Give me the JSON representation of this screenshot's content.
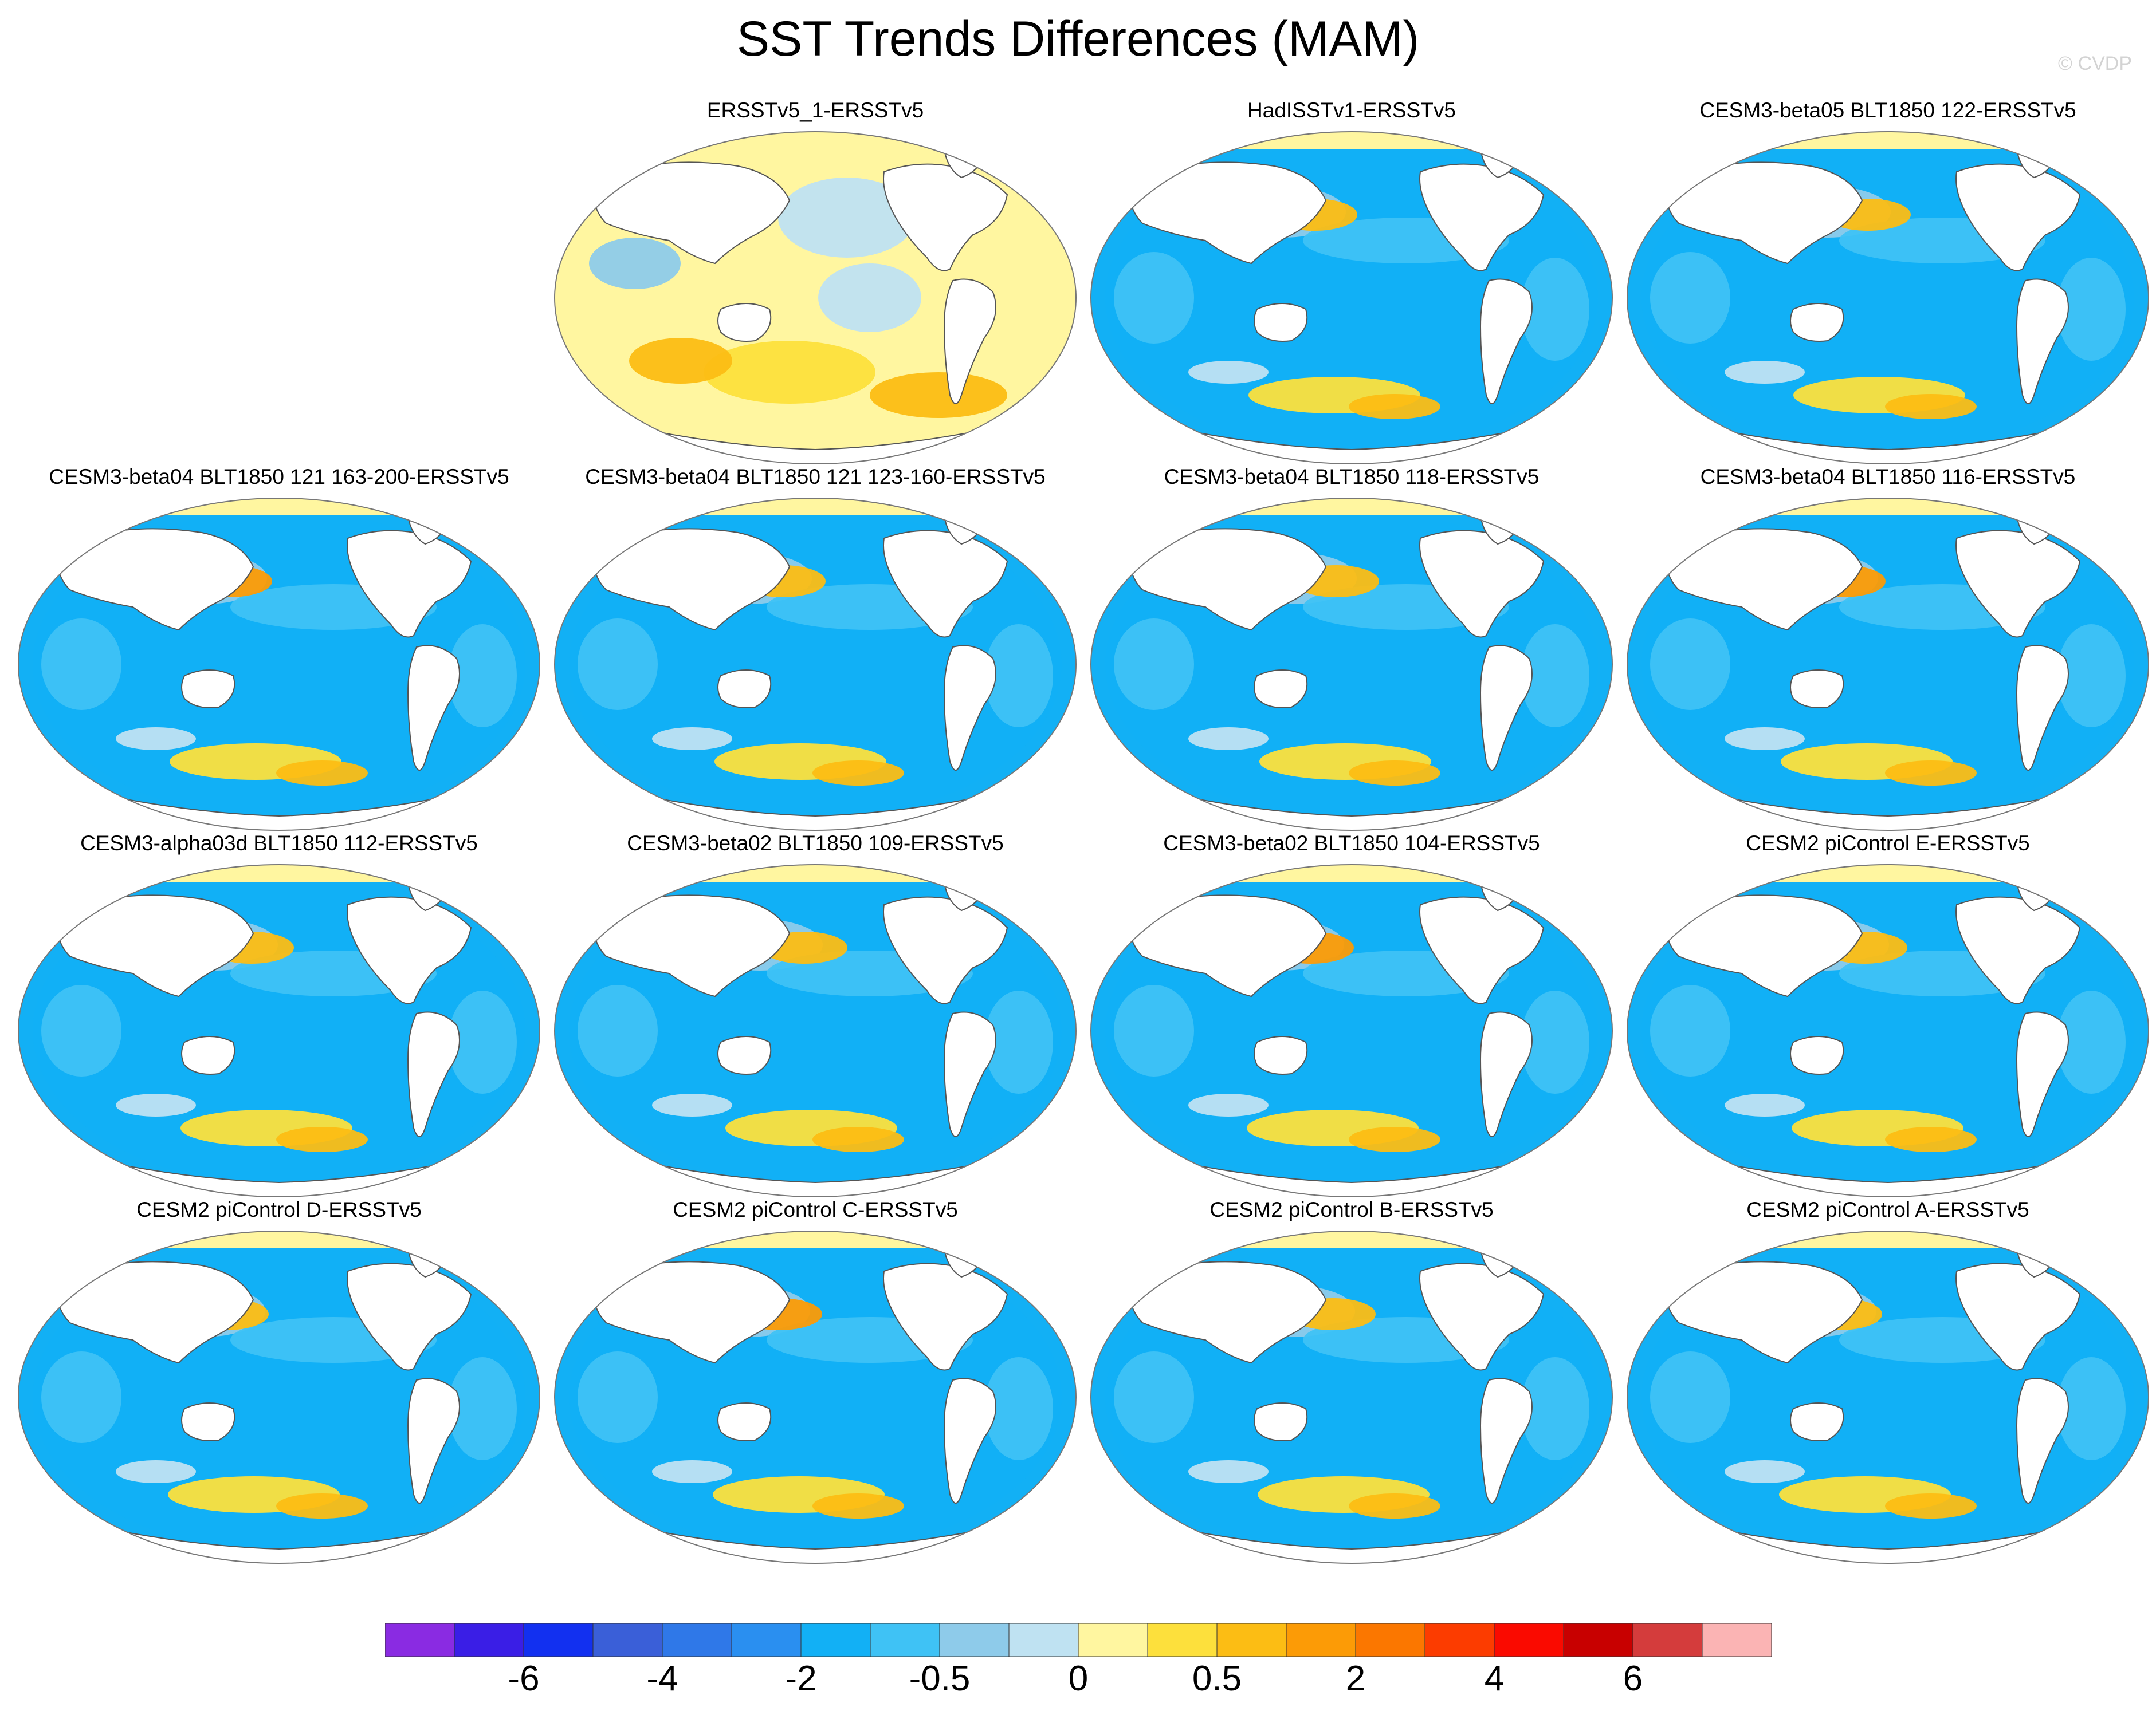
{
  "title": "SST Trends Differences (MAM)",
  "credit": "© CVDP",
  "panels": [
    {
      "title": "ERSSTv5_1-ERSSTv5",
      "palette": "warm"
    },
    {
      "title": "HadISSTv1-ERSSTv5",
      "palette": "cool"
    },
    {
      "title": "CESM3-beta05 BLT1850 122-ERSSTv5",
      "palette": "cool"
    },
    {
      "title": "CESM3-beta04 BLT1850 121 163-200-ERSSTv5",
      "palette": "cool"
    },
    {
      "title": "CESM3-beta04 BLT1850 121 123-160-ERSSTv5",
      "palette": "cool"
    },
    {
      "title": "CESM3-beta04 BLT1850 118-ERSSTv5",
      "palette": "cool"
    },
    {
      "title": "CESM3-beta04 BLT1850 116-ERSSTv5",
      "palette": "cool"
    },
    {
      "title": "CESM3-alpha03d BLT1850 112-ERSSTv5",
      "palette": "cool"
    },
    {
      "title": "CESM3-beta02 BLT1850 109-ERSSTv5",
      "palette": "cool"
    },
    {
      "title": "CESM3-beta02 BLT1850 104-ERSSTv5",
      "palette": "cool"
    },
    {
      "title": "CESM2 piControl E-ERSSTv5",
      "palette": "cool"
    },
    {
      "title": "CESM2 piControl D-ERSSTv5",
      "palette": "cool"
    },
    {
      "title": "CESM2 piControl C-ERSSTv5",
      "palette": "cool"
    },
    {
      "title": "CESM2 piControl B-ERSSTv5",
      "palette": "cool"
    },
    {
      "title": "CESM2 piControl A-ERSSTv5",
      "palette": "cool"
    }
  ],
  "colorbar": {
    "colors": [
      "#8a2be2",
      "#3a1ee6",
      "#1230f0",
      "#3a5fd8",
      "#2f78e8",
      "#2a8ff0",
      "#12b0f5",
      "#3fc2f5",
      "#8ecbea",
      "#bfe2f2",
      "#fff6a0",
      "#fde03c",
      "#fcbd14",
      "#fc9b06",
      "#fb7700",
      "#fc3c00",
      "#fa0a00",
      "#c80000",
      "#d43c3c",
      "#fbb4b4"
    ],
    "labels": [
      {
        "text": "-6",
        "boundary": 2
      },
      {
        "text": "-4",
        "boundary": 4
      },
      {
        "text": "-2",
        "boundary": 6
      },
      {
        "text": "-0.5",
        "boundary": 8
      },
      {
        "text": "0",
        "boundary": 10
      },
      {
        "text": "0.5",
        "boundary": 12
      },
      {
        "text": "2",
        "boundary": 14
      },
      {
        "text": "4",
        "boundary": 16
      },
      {
        "text": "6",
        "boundary": 18
      }
    ]
  }
}
